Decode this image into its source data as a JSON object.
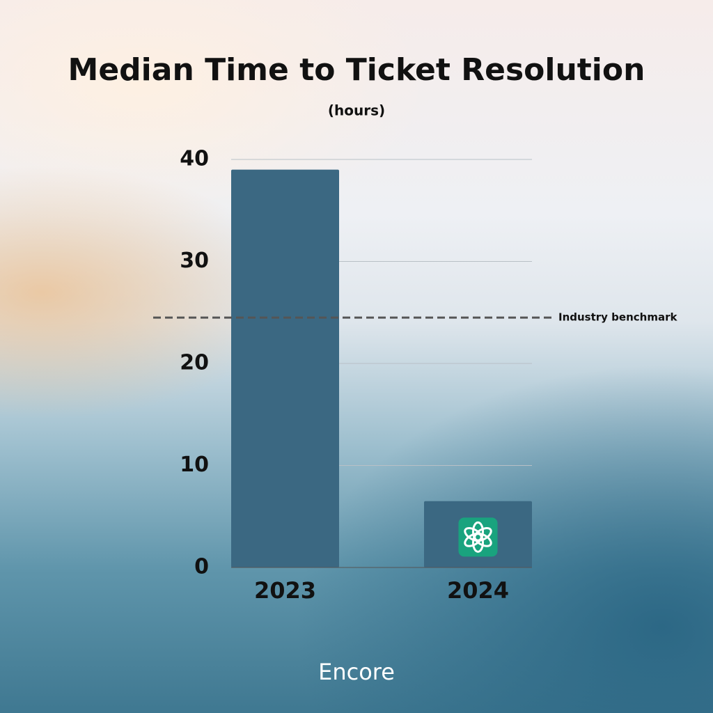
{
  "chart_data": {
    "type": "bar",
    "title": "Median Time to Ticket Resolution",
    "subtitle": "(hours)",
    "categories": [
      "2023",
      "2024"
    ],
    "values": [
      39,
      6.5
    ],
    "color": "#3b6882",
    "ylim": [
      0,
      40
    ],
    "yticks": [
      0,
      10,
      20,
      30,
      40
    ],
    "grid": true,
    "benchmark": {
      "value": 24.5,
      "label": "Industry benchmark"
    },
    "brand": "Encore"
  }
}
